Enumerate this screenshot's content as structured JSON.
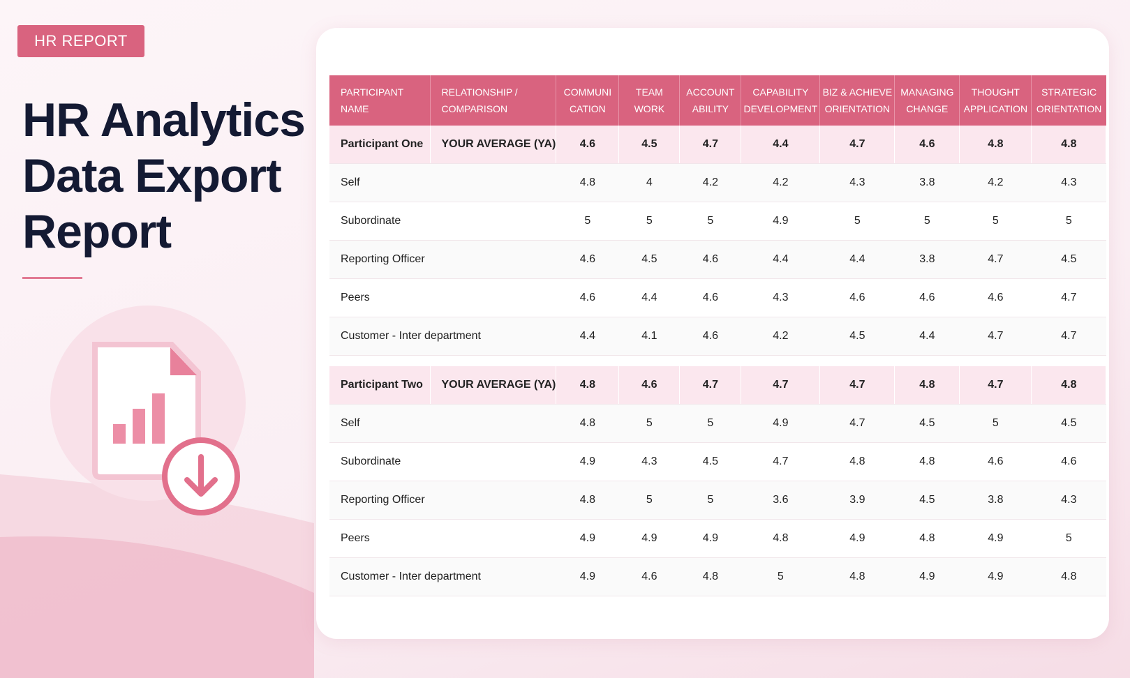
{
  "badge": "HR REPORT",
  "title": [
    "HR Analytics",
    "Data Export",
    "Report"
  ],
  "table": {
    "headers": [
      [
        "PARTICIPANT",
        "NAME"
      ],
      [
        "RELATIONSHIP /",
        "COMPARISON"
      ],
      [
        "COMMUNI",
        "CATION"
      ],
      [
        "TEAM",
        "WORK"
      ],
      [
        "ACCOUNT",
        "ABILITY"
      ],
      [
        "CAPABILITY",
        "DEVELOPMENT"
      ],
      [
        "BIZ & ACHIEVE",
        "ORIENTATION"
      ],
      [
        "MANAGING",
        "CHANGE"
      ],
      [
        "THOUGHT",
        "APPLICATION"
      ],
      [
        "STRATEGIC",
        "ORIENTATION"
      ]
    ],
    "groups": [
      {
        "name": "Participant One",
        "average": {
          "label": "YOUR AVERAGE (YA)",
          "values": [
            4.6,
            4.5,
            4.7,
            4.4,
            4.7,
            4.6,
            4.8,
            4.8
          ]
        },
        "rows": [
          {
            "label": "Self",
            "values": [
              4.8,
              4,
              4.2,
              4.2,
              4.3,
              3.8,
              4.2,
              4.3
            ]
          },
          {
            "label": "Subordinate",
            "values": [
              5,
              5,
              5,
              4.9,
              5,
              5,
              5,
              5
            ]
          },
          {
            "label": "Reporting Officer",
            "values": [
              4.6,
              4.5,
              4.6,
              4.4,
              4.4,
              3.8,
              4.7,
              4.5
            ]
          },
          {
            "label": "Peers",
            "values": [
              4.6,
              4.4,
              4.6,
              4.3,
              4.6,
              4.6,
              4.6,
              4.7
            ]
          },
          {
            "label": "Customer - Inter department",
            "values": [
              4.4,
              4.1,
              4.6,
              4.2,
              4.5,
              4.4,
              4.7,
              4.7
            ]
          }
        ]
      },
      {
        "name": "Participant Two",
        "average": {
          "label": "YOUR AVERAGE (YA)",
          "values": [
            4.8,
            4.6,
            4.7,
            4.7,
            4.7,
            4.8,
            4.7,
            4.8
          ]
        },
        "rows": [
          {
            "label": "Self",
            "values": [
              4.8,
              5,
              5,
              4.9,
              4.7,
              4.5,
              5,
              4.5
            ]
          },
          {
            "label": "Subordinate",
            "values": [
              4.9,
              4.3,
              4.5,
              4.7,
              4.8,
              4.8,
              4.6,
              4.6
            ]
          },
          {
            "label": "Reporting Officer",
            "values": [
              4.8,
              5,
              5,
              3.6,
              3.9,
              4.5,
              3.8,
              4.3
            ]
          },
          {
            "label": "Peers",
            "values": [
              4.9,
              4.9,
              4.9,
              4.8,
              4.9,
              4.8,
              4.9,
              5
            ]
          },
          {
            "label": "Customer - Inter department",
            "values": [
              4.9,
              4.6,
              4.8,
              5,
              4.8,
              4.9,
              4.9,
              4.8
            ]
          }
        ]
      }
    ]
  }
}
